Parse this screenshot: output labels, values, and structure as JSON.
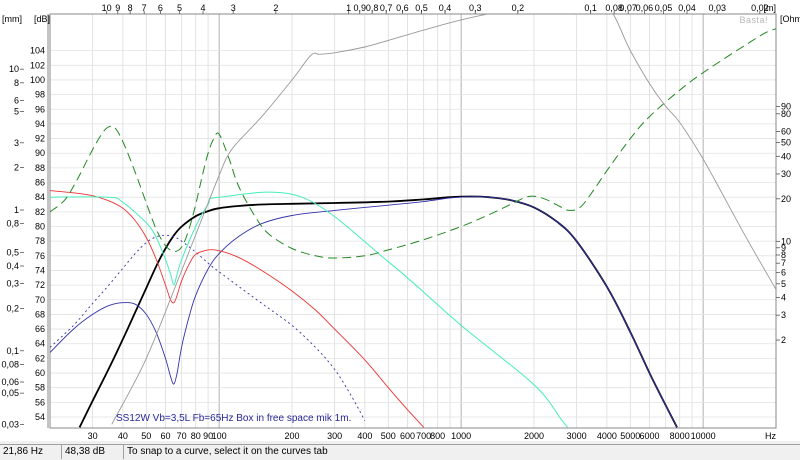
{
  "chart_data": {
    "type": "line",
    "x_scale": "log",
    "xlim": [
      20,
      20000
    ],
    "ylim": [
      52.5,
      109
    ],
    "x_unit": "Hz",
    "y_unit_left": "dB",
    "y_unit_left_outer": "mm",
    "y_unit_right": "Ohm",
    "x_top_unit": "m",
    "watermark": "Basta!",
    "grid": true,
    "x_ticks": [
      {
        "v": 30,
        "label": "30"
      },
      {
        "v": 40,
        "label": "40"
      },
      {
        "v": 50,
        "label": "50"
      },
      {
        "v": 60,
        "label": "60"
      },
      {
        "v": 70,
        "label": "70"
      },
      {
        "v": 80,
        "label": "80"
      },
      {
        "v": 90,
        "label": "90"
      },
      {
        "v": 100,
        "label": "100"
      },
      {
        "v": 200,
        "label": "200"
      },
      {
        "v": 300,
        "label": "300"
      },
      {
        "v": 400,
        "label": "400"
      },
      {
        "v": 500,
        "label": "500"
      },
      {
        "v": 600,
        "label": "600"
      },
      {
        "v": 700,
        "label": "700"
      },
      {
        "v": 800,
        "label": "800"
      },
      {
        "v": 1000,
        "label": "1000"
      },
      {
        "v": 2000,
        "label": "2000"
      },
      {
        "v": 3000,
        "label": "3000"
      },
      {
        "v": 4000,
        "label": "4000"
      },
      {
        "v": 5000,
        "label": "5000"
      },
      {
        "v": 6000,
        "label": "6000"
      },
      {
        "v": 8000,
        "label": "8000"
      },
      {
        "v": 10000,
        "label": "10000"
      }
    ],
    "top_ticks": [
      {
        "v": 10,
        "label": "10"
      },
      {
        "v": 9,
        "label": "9"
      },
      {
        "v": 8,
        "label": "8"
      },
      {
        "v": 7,
        "label": "7"
      },
      {
        "v": 6,
        "label": "6"
      },
      {
        "v": 5,
        "label": "5"
      },
      {
        "v": 4,
        "label": "4"
      },
      {
        "v": 3,
        "label": "3"
      },
      {
        "v": 2,
        "label": "2"
      },
      {
        "v": 1,
        "label": "1"
      },
      {
        "v": 0.9,
        "label": "0,9"
      },
      {
        "v": 0.8,
        "label": "0,8"
      },
      {
        "v": 0.7,
        "label": "0,7"
      },
      {
        "v": 0.6,
        "label": "0,6"
      },
      {
        "v": 0.5,
        "label": "0,5"
      },
      {
        "v": 0.4,
        "label": "0,4"
      },
      {
        "v": 0.3,
        "label": "0,3"
      },
      {
        "v": 0.2,
        "label": "0,2"
      },
      {
        "v": 0.1,
        "label": "0,1"
      },
      {
        "v": 0.08,
        "label": "0,08"
      },
      {
        "v": 0.07,
        "label": "0,07"
      },
      {
        "v": 0.06,
        "label": "0,06"
      },
      {
        "v": 0.05,
        "label": "0,05"
      },
      {
        "v": 0.04,
        "label": "0,04"
      },
      {
        "v": 0.03,
        "label": "0,03"
      },
      {
        "v": 0.02,
        "label": "0,02"
      }
    ],
    "db_ticks": [
      54,
      56,
      58,
      60,
      62,
      64,
      66,
      68,
      70,
      72,
      74,
      76,
      78,
      80,
      82,
      84,
      86,
      88,
      90,
      92,
      94,
      96,
      98,
      100,
      102,
      104
    ],
    "mm_ticks": [
      {
        "v": 70,
        "label": "70"
      },
      {
        "v": 50,
        "label": "50"
      },
      {
        "v": 40,
        "label": "40"
      },
      {
        "v": 30,
        "label": "30"
      },
      {
        "v": 20,
        "label": "20"
      },
      {
        "v": 10,
        "label": "10"
      },
      {
        "v": 8,
        "label": "8"
      },
      {
        "v": 6,
        "label": "6"
      },
      {
        "v": 5,
        "label": "5"
      },
      {
        "v": 3,
        "label": "3"
      },
      {
        "v": 2,
        "label": "2"
      },
      {
        "v": 1,
        "label": "1"
      },
      {
        "v": 0.8,
        "label": "0,8"
      },
      {
        "v": 0.5,
        "label": "0,5"
      },
      {
        "v": 0.4,
        "label": "0,4"
      },
      {
        "v": 0.3,
        "label": "0,3"
      },
      {
        "v": 0.2,
        "label": "0,2"
      },
      {
        "v": 0.1,
        "label": "0,1"
      },
      {
        "v": 0.08,
        "label": "0,08"
      },
      {
        "v": 0.06,
        "label": "0,06"
      },
      {
        "v": 0.05,
        "label": "0,05"
      },
      {
        "v": 0.03,
        "label": "0,03"
      },
      {
        "v": 0.02,
        "label": "0,02"
      }
    ],
    "ohm_ticks": [
      {
        "v": 90,
        "label": "90"
      },
      {
        "v": 80,
        "label": "80"
      },
      {
        "v": 60,
        "label": "60"
      },
      {
        "v": 50,
        "label": "50"
      },
      {
        "v": 40,
        "label": "40"
      },
      {
        "v": 30,
        "label": "30"
      },
      {
        "v": 20,
        "label": "20"
      },
      {
        "v": 10,
        "label": "10"
      },
      {
        "v": 9,
        "label": "9"
      },
      {
        "v": 8,
        "label": "8"
      },
      {
        "v": 7,
        "label": "7"
      },
      {
        "v": 6,
        "label": "6"
      },
      {
        "v": 5,
        "label": "5"
      },
      {
        "v": 4,
        "label": "4"
      },
      {
        "v": 3,
        "label": "3"
      },
      {
        "v": 2,
        "label": "2"
      }
    ],
    "annotation": "SS12W Vb=3,5L Fb=65Hz Box in free space mik 1m.",
    "series": [
      {
        "key": "spl",
        "color": "#000000",
        "style": "solid",
        "width": 1.8,
        "points": [
          [
            26.5,
            52.6
          ],
          [
            30,
            56.2
          ],
          [
            35,
            60.6
          ],
          [
            40,
            64.6
          ],
          [
            45,
            68.3
          ],
          [
            50,
            71.6
          ],
          [
            55,
            74.6
          ],
          [
            60,
            77
          ],
          [
            65,
            78.8
          ],
          [
            70,
            80
          ],
          [
            80,
            81.4
          ],
          [
            90,
            82.1
          ],
          [
            100,
            82.5
          ],
          [
            120,
            82.8
          ],
          [
            150,
            83
          ],
          [
            200,
            83.1
          ],
          [
            300,
            83.2
          ],
          [
            500,
            83.4
          ],
          [
            700,
            83.7
          ],
          [
            900,
            84
          ],
          [
            1100,
            84.1
          ],
          [
            1300,
            84
          ],
          [
            1600,
            83.6
          ],
          [
            2000,
            82.6
          ],
          [
            2500,
            80.6
          ],
          [
            3000,
            78
          ],
          [
            4000,
            71.8
          ],
          [
            5000,
            65.6
          ],
          [
            6000,
            60
          ],
          [
            7000,
            55.6
          ],
          [
            7800,
            52.6
          ]
        ]
      },
      {
        "key": "port_spl",
        "color": "#3333aa",
        "style": "solid",
        "width": 0.9,
        "points": [
          [
            20,
            62.8
          ],
          [
            25,
            66
          ],
          [
            30,
            68
          ],
          [
            35,
            69.2
          ],
          [
            40,
            69.6
          ],
          [
            45,
            69.4
          ],
          [
            50,
            68
          ],
          [
            55,
            65.5
          ],
          [
            60,
            62
          ],
          [
            63,
            59.5
          ],
          [
            65,
            58.5
          ],
          [
            67,
            60
          ],
          [
            70,
            63.6
          ],
          [
            75,
            67.6
          ],
          [
            80,
            70.6
          ],
          [
            90,
            74.2
          ],
          [
            100,
            76.3
          ],
          [
            120,
            78.6
          ],
          [
            150,
            80.4
          ],
          [
            200,
            81.5
          ],
          [
            300,
            82.2
          ],
          [
            500,
            82.9
          ],
          [
            700,
            83.4
          ],
          [
            900,
            83.9
          ],
          [
            1100,
            84.05
          ],
          [
            1300,
            84
          ],
          [
            1600,
            83.6
          ],
          [
            2000,
            82.6
          ],
          [
            2500,
            80.6
          ],
          [
            3000,
            78
          ],
          [
            4000,
            71.8
          ],
          [
            5000,
            65.6
          ],
          [
            6000,
            60
          ],
          [
            7000,
            55.6
          ],
          [
            7800,
            52.6
          ]
        ]
      },
      {
        "key": "port_alt",
        "color": "#3333aa",
        "style": "dotted",
        "width": 0.9,
        "points": [
          [
            20,
            63.5
          ],
          [
            25,
            66.5
          ],
          [
            30,
            69.5
          ],
          [
            35,
            72
          ],
          [
            40,
            74.3
          ],
          [
            45,
            76.3
          ],
          [
            50,
            77.8
          ],
          [
            55,
            78.6
          ],
          [
            60,
            78.8
          ],
          [
            65,
            78.6
          ],
          [
            70,
            78
          ],
          [
            80,
            76.5
          ],
          [
            90,
            75
          ],
          [
            100,
            73.8
          ],
          [
            150,
            69.5
          ],
          [
            200,
            66.5
          ],
          [
            250,
            63.5
          ],
          [
            300,
            60.5
          ],
          [
            350,
            57
          ],
          [
            400,
            53.5
          ]
        ]
      },
      {
        "key": "cone_spl",
        "color": "#ee3333",
        "style": "solid",
        "width": 0.9,
        "points": [
          [
            20,
            84.9
          ],
          [
            25,
            84.6
          ],
          [
            30,
            84.2
          ],
          [
            35,
            83.5
          ],
          [
            40,
            82.5
          ],
          [
            45,
            80.8
          ],
          [
            50,
            78.5
          ],
          [
            55,
            75.5
          ],
          [
            60,
            72
          ],
          [
            63,
            70
          ],
          [
            65,
            69.6
          ],
          [
            67,
            70.6
          ],
          [
            70,
            72.6
          ],
          [
            75,
            74.8
          ],
          [
            80,
            76.2
          ],
          [
            90,
            76.8
          ],
          [
            100,
            76.7
          ],
          [
            120,
            75.8
          ],
          [
            150,
            74
          ],
          [
            200,
            71.2
          ],
          [
            250,
            68.6
          ],
          [
            300,
            66
          ],
          [
            400,
            61.8
          ],
          [
            500,
            58
          ],
          [
            600,
            55
          ],
          [
            700,
            52.6
          ]
        ]
      },
      {
        "key": "excursion",
        "color": "#44eebb",
        "style": "solid",
        "width": 1.0,
        "points": [
          [
            20,
            84
          ],
          [
            35,
            84
          ],
          [
            40,
            83.3
          ],
          [
            50,
            80.5
          ],
          [
            55,
            78.5
          ],
          [
            60,
            75.5
          ],
          [
            63,
            73.5
          ],
          [
            65,
            72
          ],
          [
            67,
            73.5
          ],
          [
            70,
            75.5
          ],
          [
            80,
            80
          ],
          [
            90,
            83
          ],
          [
            100,
            84
          ],
          [
            220,
            84
          ],
          [
            500,
            75.2
          ],
          [
            1000,
            66.5
          ],
          [
            2000,
            58.4
          ],
          [
            2600,
            53.6
          ],
          [
            2750,
            52.6
          ]
        ]
      },
      {
        "key": "impedance",
        "color": "#228822",
        "style": "dashed",
        "width": 1.0,
        "points": [
          [
            20,
            82
          ],
          [
            23,
            83.6
          ],
          [
            26,
            86.5
          ],
          [
            30,
            90.5
          ],
          [
            33,
            92.8
          ],
          [
            35,
            93.6
          ],
          [
            37,
            93.5
          ],
          [
            40,
            91.6
          ],
          [
            45,
            87.4
          ],
          [
            50,
            83.2
          ],
          [
            55,
            79.6
          ],
          [
            60,
            77.4
          ],
          [
            65,
            76.6
          ],
          [
            70,
            77.2
          ],
          [
            75,
            79.6
          ],
          [
            80,
            83
          ],
          [
            85,
            86.8
          ],
          [
            90,
            90
          ],
          [
            95,
            92
          ],
          [
            100,
            92.6
          ],
          [
            110,
            89.2
          ],
          [
            120,
            85.6
          ],
          [
            140,
            81.5
          ],
          [
            160,
            79
          ],
          [
            200,
            77
          ],
          [
            250,
            76
          ],
          [
            300,
            75.7
          ],
          [
            400,
            76
          ],
          [
            500,
            76.8
          ],
          [
            700,
            78.2
          ],
          [
            1000,
            80
          ],
          [
            1300,
            81.6
          ],
          [
            1600,
            83
          ],
          [
            1900,
            84.1
          ],
          [
            2200,
            83.8
          ],
          [
            2600,
            82.6
          ],
          [
            2800,
            82.2
          ],
          [
            3100,
            82.6
          ],
          [
            3500,
            84.8
          ],
          [
            4000,
            87.6
          ],
          [
            5000,
            92
          ],
          [
            6000,
            95
          ],
          [
            8000,
            98.6
          ],
          [
            10000,
            101
          ],
          [
            15000,
            104.8
          ],
          [
            18000,
            106.4
          ],
          [
            20000,
            107
          ]
        ]
      },
      {
        "key": "power",
        "color": "#999999",
        "style": "solid",
        "width": 0.9,
        "points": [
          [
            36,
            53
          ],
          [
            50,
            62
          ],
          [
            70,
            74
          ],
          [
            100,
            87
          ],
          [
            110,
            90
          ],
          [
            120,
            91.6
          ],
          [
            150,
            95
          ],
          [
            200,
            100
          ],
          [
            240,
            103.4
          ],
          [
            260,
            103.5
          ],
          [
            300,
            103.7
          ],
          [
            400,
            104.5
          ],
          [
            500,
            105.4
          ],
          [
            700,
            106.8
          ],
          [
            1000,
            108.2
          ],
          [
            1500,
            109.4
          ],
          [
            2000,
            109.8
          ],
          [
            2500,
            109.3
          ],
          [
            3000,
            109
          ],
          [
            4000,
            110
          ],
          [
            5000,
            104
          ],
          [
            6000,
            99.5
          ],
          [
            7000,
            96.4
          ],
          [
            8000,
            94.2
          ],
          [
            10000,
            89.2
          ],
          [
            15000,
            78.6
          ],
          [
            20000,
            71.4
          ]
        ]
      }
    ]
  },
  "statusbar": {
    "frequency": "21,86 Hz",
    "level": "48,38 dB",
    "hint": "To snap to a curve, select it on the curves tab"
  }
}
